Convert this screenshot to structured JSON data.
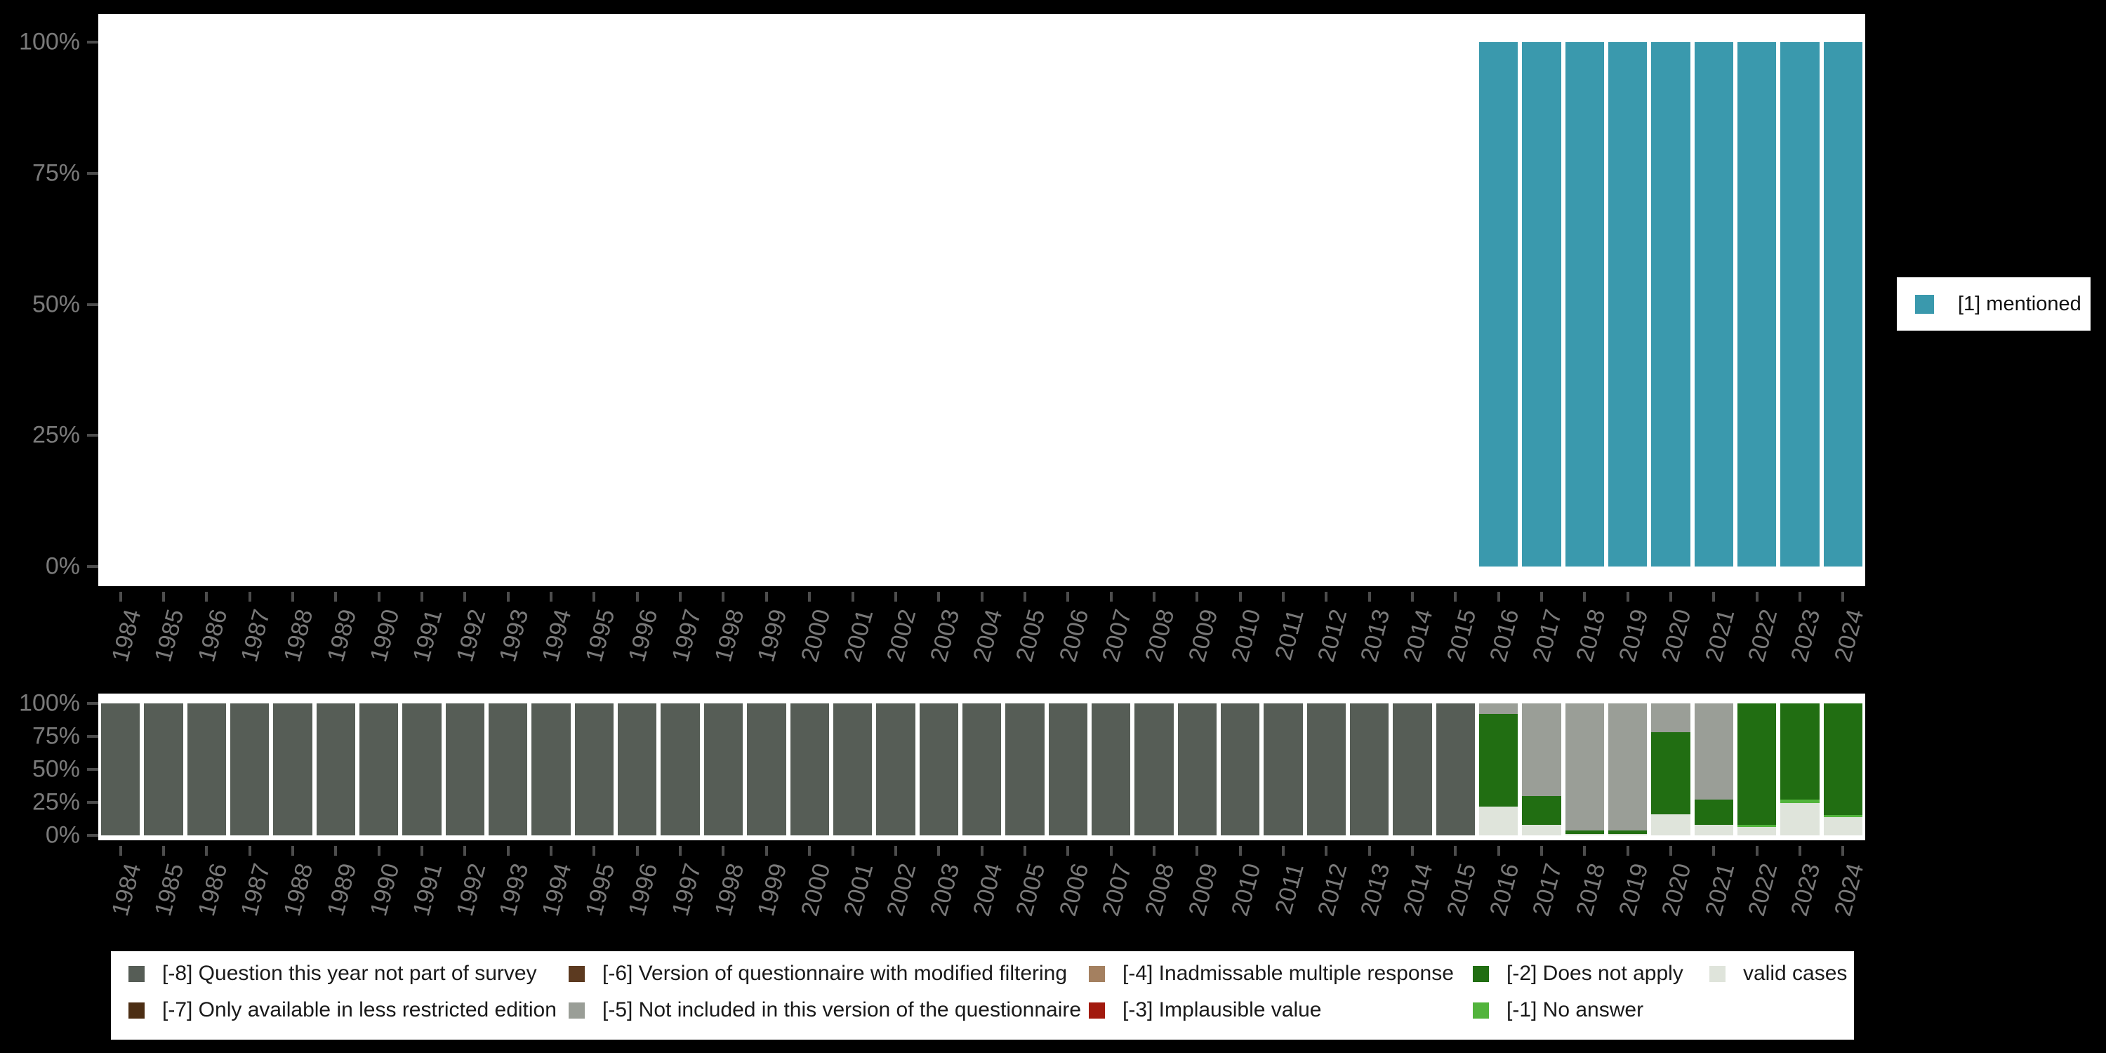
{
  "colors": {
    "background": "#000000",
    "plot_background": "#ffffff",
    "axis_text": "#7a7a7a",
    "axis_tick": "#4d4d4d",
    "mentioned": "#3A99AD",
    "minus_8": "#565D56",
    "minus_7": "#4C2E14",
    "minus_6": "#5C3A20",
    "minus_5": "#9A9E97",
    "minus_4": "#A48060",
    "minus_3": "#A21A0E",
    "minus_2": "#216E12",
    "minus_1": "#52B43C",
    "valid": "#DFE4DB"
  },
  "y_axis": {
    "tick_labels": [
      "100%",
      "75%",
      "50%",
      "25%",
      "0%"
    ]
  },
  "top_legend": {
    "label": "[1] mentioned",
    "color": "#3A99AD"
  },
  "bottom_legend": {
    "items": [
      {
        "key": "minus-8",
        "label": "[-8] Question this year not part of survey",
        "color": "#565D56",
        "row": 0,
        "col": 0
      },
      {
        "key": "minus-6",
        "label": "[-6] Version of questionnaire with modified filtering",
        "color": "#5C3A20",
        "row": 0,
        "col": 1
      },
      {
        "key": "minus-4",
        "label": "[-4] Inadmissable multiple response",
        "color": "#A48060",
        "row": 0,
        "col": 2
      },
      {
        "key": "minus-2",
        "label": "[-2] Does not apply",
        "color": "#216E12",
        "row": 0,
        "col": 3
      },
      {
        "key": "valid-cases",
        "label": "valid cases",
        "color": "#DFE4DB",
        "row": 0,
        "col": 4
      },
      {
        "key": "minus-7",
        "label": "[-7] Only available in less restricted edition",
        "color": "#4C2E14",
        "row": 1,
        "col": 0
      },
      {
        "key": "minus-5",
        "label": "[-5] Not included in this version of the questionnaire",
        "color": "#9A9E97",
        "row": 1,
        "col": 1
      },
      {
        "key": "minus-3",
        "label": "[-3] Implausible value",
        "color": "#A21A0E",
        "row": 1,
        "col": 2
      },
      {
        "key": "minus-1",
        "label": "[-1] No answer",
        "color": "#52B43C",
        "row": 1,
        "col": 3
      }
    ]
  },
  "chart_data": [
    {
      "type": "bar",
      "stacked": true,
      "title": "",
      "ylabel": "",
      "ylim": [
        0,
        100
      ],
      "grid": false,
      "legend_position": "right",
      "y_tick_labels": [
        "100%",
        "75%",
        "50%",
        "25%",
        "0%"
      ],
      "categories": [
        "1984",
        "1985",
        "1986",
        "1987",
        "1988",
        "1989",
        "1990",
        "1991",
        "1992",
        "1993",
        "1994",
        "1995",
        "1996",
        "1997",
        "1998",
        "1999",
        "2000",
        "2001",
        "2002",
        "2003",
        "2004",
        "2005",
        "2006",
        "2007",
        "2008",
        "2009",
        "2010",
        "2011",
        "2012",
        "2013",
        "2014",
        "2015",
        "2016",
        "2017",
        "2018",
        "2019",
        "2020",
        "2021",
        "2022",
        "2023",
        "2024"
      ],
      "series": [
        {
          "key": "mentioned",
          "name": "[1] mentioned",
          "color": "#3A99AD",
          "values": [
            0,
            0,
            0,
            0,
            0,
            0,
            0,
            0,
            0,
            0,
            0,
            0,
            0,
            0,
            0,
            0,
            0,
            0,
            0,
            0,
            0,
            0,
            0,
            0,
            0,
            0,
            0,
            0,
            0,
            0,
            0,
            0,
            100,
            100,
            100,
            100,
            100,
            100,
            100,
            100,
            100
          ]
        }
      ]
    },
    {
      "type": "bar",
      "stacked": true,
      "title": "",
      "ylabel": "",
      "ylim": [
        0,
        100
      ],
      "grid": false,
      "legend_position": "bottom",
      "y_tick_labels": [
        "100%",
        "75%",
        "50%",
        "25%",
        "0%"
      ],
      "categories": [
        "1984",
        "1985",
        "1986",
        "1987",
        "1988",
        "1989",
        "1990",
        "1991",
        "1992",
        "1993",
        "1994",
        "1995",
        "1996",
        "1997",
        "1998",
        "1999",
        "2000",
        "2001",
        "2002",
        "2003",
        "2004",
        "2005",
        "2006",
        "2007",
        "2008",
        "2009",
        "2010",
        "2011",
        "2012",
        "2013",
        "2014",
        "2015",
        "2016",
        "2017",
        "2018",
        "2019",
        "2020",
        "2021",
        "2022",
        "2023",
        "2024"
      ],
      "series": [
        {
          "key": "minus-8",
          "name": "[-8] Question this year not part of survey",
          "color": "#565D56",
          "values": [
            100,
            100,
            100,
            100,
            100,
            100,
            100,
            100,
            100,
            100,
            100,
            100,
            100,
            100,
            100,
            100,
            100,
            100,
            100,
            100,
            100,
            100,
            100,
            100,
            100,
            100,
            100,
            100,
            100,
            100,
            100,
            100,
            0,
            0,
            0,
            0,
            0,
            0,
            0,
            0,
            0
          ]
        },
        {
          "key": "minus-7",
          "name": "[-7] Only available in less restricted edition",
          "color": "#4C2E14",
          "values": [
            0,
            0,
            0,
            0,
            0,
            0,
            0,
            0,
            0,
            0,
            0,
            0,
            0,
            0,
            0,
            0,
            0,
            0,
            0,
            0,
            0,
            0,
            0,
            0,
            0,
            0,
            0,
            0,
            0,
            0,
            0,
            0,
            0,
            0,
            0,
            0,
            0,
            0,
            0,
            0,
            0
          ]
        },
        {
          "key": "minus-6",
          "name": "[-6] Version of questionnaire with modified filtering",
          "color": "#5C3A20",
          "values": [
            0,
            0,
            0,
            0,
            0,
            0,
            0,
            0,
            0,
            0,
            0,
            0,
            0,
            0,
            0,
            0,
            0,
            0,
            0,
            0,
            0,
            0,
            0,
            0,
            0,
            0,
            0,
            0,
            0,
            0,
            0,
            0,
            0,
            0,
            0,
            0,
            0,
            0,
            0,
            0,
            0
          ]
        },
        {
          "key": "minus-5",
          "name": "[-5] Not included in this version of the questionnaire",
          "color": "#9A9E97",
          "values": [
            0,
            0,
            0,
            0,
            0,
            0,
            0,
            0,
            0,
            0,
            0,
            0,
            0,
            0,
            0,
            0,
            0,
            0,
            0,
            0,
            0,
            0,
            0,
            0,
            0,
            0,
            0,
            0,
            0,
            0,
            0,
            0,
            8,
            70,
            96.5,
            96,
            22,
            73,
            0,
            0,
            0
          ]
        },
        {
          "key": "minus-4",
          "name": "[-4] Inadmissable multiple response",
          "color": "#A48060",
          "values": [
            0,
            0,
            0,
            0,
            0,
            0,
            0,
            0,
            0,
            0,
            0,
            0,
            0,
            0,
            0,
            0,
            0,
            0,
            0,
            0,
            0,
            0,
            0,
            0,
            0,
            0,
            0,
            0,
            0,
            0,
            0,
            0,
            0,
            0,
            0,
            0,
            0,
            0,
            0,
            0,
            0
          ]
        },
        {
          "key": "minus-3",
          "name": "[-3] Implausible value",
          "color": "#A21A0E",
          "values": [
            0,
            0,
            0,
            0,
            0,
            0,
            0,
            0,
            0,
            0,
            0,
            0,
            0,
            0,
            0,
            0,
            0,
            0,
            0,
            0,
            0,
            0,
            0,
            0,
            0,
            0,
            0,
            0,
            0,
            0,
            0,
            0,
            0,
            0,
            0,
            0,
            0,
            0,
            0,
            0,
            0
          ]
        },
        {
          "key": "minus-2",
          "name": "[-2] Does not apply",
          "color": "#216E12",
          "values": [
            0,
            0,
            0,
            0,
            0,
            0,
            0,
            0,
            0,
            0,
            0,
            0,
            0,
            0,
            0,
            0,
            0,
            0,
            0,
            0,
            0,
            0,
            0,
            0,
            0,
            0,
            0,
            0,
            0,
            0,
            0,
            0,
            70,
            22,
            2.5,
            3,
            62,
            19,
            92,
            73,
            84.5
          ]
        },
        {
          "key": "minus-1",
          "name": "[-1] No answer",
          "color": "#52B43C",
          "values": [
            0,
            0,
            0,
            0,
            0,
            0,
            0,
            0,
            0,
            0,
            0,
            0,
            0,
            0,
            0,
            0,
            0,
            0,
            0,
            0,
            0,
            0,
            0,
            0,
            0,
            0,
            0,
            0,
            0,
            0,
            0,
            0,
            0,
            0,
            0,
            0,
            0,
            0,
            1.5,
            2.5,
            1.5
          ]
        },
        {
          "key": "valid-cases",
          "name": "valid cases",
          "color": "#DFE4DB",
          "values": [
            0,
            0,
            0,
            0,
            0,
            0,
            0,
            0,
            0,
            0,
            0,
            0,
            0,
            0,
            0,
            0,
            0,
            0,
            0,
            0,
            0,
            0,
            0,
            0,
            0,
            0,
            0,
            0,
            0,
            0,
            0,
            0,
            22,
            8,
            1,
            1,
            16,
            8,
            6.5,
            24.5,
            14
          ]
        }
      ]
    }
  ]
}
